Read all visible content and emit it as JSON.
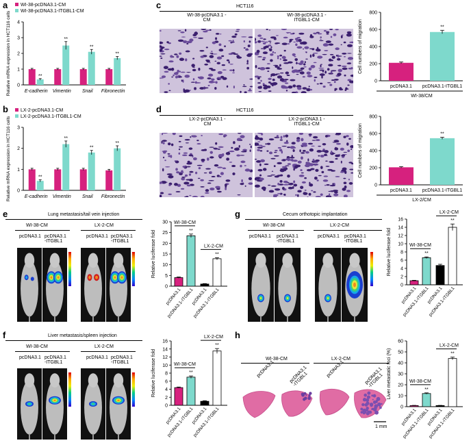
{
  "colors": {
    "magenta": "#d6217e",
    "teal": "#7ed9cc",
    "white": "#ffffff",
    "black": "#000000"
  },
  "panel_a": {
    "label": "a",
    "legend": [
      "WI-38-pcDNA3.1-CM",
      "WI-38-pcDNA3.1-ITGBL1-CM"
    ],
    "ylabel": "Relative mRNA expression in HCT116 cells",
    "yticks": [
      "0",
      "1",
      "2",
      "3",
      "4"
    ],
    "sig": "**"
  },
  "panel_b": {
    "label": "b",
    "legend": [
      "LX-2-pcDNA3.1-CM",
      "LX-2-pcDNA3.1-ITGBL1-CM"
    ],
    "ylabel": "Relative mRNA expression in HCT116 cells",
    "yticks": [
      "0",
      "1",
      "2",
      "3"
    ],
    "sig": "**"
  },
  "panel_c": {
    "label": "c",
    "cell_line": "HCT116",
    "img_left": "WI-38-pcDNA3.1 -CM",
    "img_right": "WI-38-pcDNA3.1 -ITGBL1-CM",
    "ylabel": "Cell numbers of migration",
    "yticks": [
      "0",
      "200",
      "400",
      "600",
      "800"
    ],
    "group": "WI-38/CM",
    "sig": "**"
  },
  "panel_d": {
    "label": "d",
    "cell_line": "HCT116",
    "img_left": "LX-2-pcDNA3.1 -CM",
    "img_right": "LX-2-pcDNA3.1 -ITGBL1-CM",
    "ylabel": "Cell numbers of migration",
    "yticks": [
      "0",
      "200",
      "400",
      "600",
      "800"
    ],
    "group": "LX-2/CM",
    "sig": "**"
  },
  "panel_e": {
    "label": "e",
    "title": "Lung metastasis/tail vein injection",
    "group1": "WI-38-CM",
    "group2": "LX-2-CM",
    "c1": "pcDNA3.1",
    "c2": "pcDNA3.1 -ITGBL1",
    "ylabel": "Relative luciferase fold",
    "yticks": [
      "0",
      "5",
      "10",
      "15",
      "20",
      "25",
      "30"
    ],
    "sig": "**"
  },
  "panel_f": {
    "label": "f",
    "title": "Liver metastasis/spleen injection",
    "group1": "WI-38-CM",
    "group2": "LX-2-CM",
    "c1": "pcDNA3.1",
    "c2": "pcDNA3.1 -ITGBL1",
    "ylabel": "Relative luciferase fold",
    "yticks": [
      "0",
      "2",
      "4",
      "6",
      "8",
      "10",
      "12",
      "14",
      "16"
    ],
    "sig": "**"
  },
  "panel_g": {
    "label": "g",
    "title": "Cecum orthotopic implantation",
    "group1": "WI-38-CM",
    "group2": "LX-2-CM",
    "c1": "pcDNA3.1",
    "c2": "pcDNA3.1 -ITGBL1",
    "ylabel": "Relative luciferase fold",
    "yticks": [
      "0",
      "2",
      "4",
      "6",
      "8",
      "10",
      "12",
      "14",
      "16"
    ],
    "sig": "**"
  },
  "panel_h": {
    "label": "h",
    "group1": "WI-38-CM",
    "group2": "LX-2-CM",
    "img_labels": [
      "pcDNA3.1",
      "pcDNA3.1 -ITGBL1",
      "pcDNA3.1",
      "pcDNA3.1 -ITGBL1"
    ],
    "scale": "1 mm",
    "ylabel": "Liver metastatic foci (%)",
    "yticks": [
      "0",
      "10",
      "20",
      "30",
      "40",
      "50",
      "60"
    ],
    "sig": "**"
  },
  "chart_data": [
    {
      "id": "a",
      "type": "bar",
      "categories": [
        "E-cadherin",
        "Vimentin",
        "Snail",
        "Fibronectin"
      ],
      "series": [
        {
          "name": "WI-38-pcDNA3.1-CM",
          "values": [
            1.0,
            1.0,
            1.0,
            1.0
          ]
        },
        {
          "name": "WI-38-pcDNA3.1-ITGBL1-CM",
          "values": [
            0.35,
            2.5,
            2.1,
            1.7
          ]
        }
      ],
      "errors": [
        [
          0.05,
          0.05,
          0.05,
          0.05
        ],
        [
          0.05,
          0.25,
          0.15,
          0.1
        ]
      ],
      "ylim": [
        0,
        4
      ],
      "ylabel": "Relative mRNA expression in HCT116 cells"
    },
    {
      "id": "b",
      "type": "bar",
      "categories": [
        "E-cadherin",
        "Vimentin",
        "Snail",
        "Fibronectin"
      ],
      "series": [
        {
          "name": "LX-2-pcDNA3.1-CM",
          "values": [
            1.0,
            1.0,
            1.0,
            0.95
          ]
        },
        {
          "name": "LX-2-pcDNA3.1-ITGBL1-CM",
          "values": [
            0.45,
            2.2,
            1.8,
            2.0
          ]
        }
      ],
      "errors": [
        [
          0.05,
          0.05,
          0.05,
          0.05
        ],
        [
          0.05,
          0.15,
          0.1,
          0.12
        ]
      ],
      "ylim": [
        0,
        3
      ],
      "ylabel": "Relative mRNA expression in HCT116 cells"
    },
    {
      "id": "c",
      "type": "bar",
      "categories": [
        "pcDNA3.1",
        "pcDNA3.1-ITGBL1"
      ],
      "values": [
        210,
        570
      ],
      "errors": [
        10,
        20
      ],
      "ylim": [
        0,
        800
      ],
      "ylabel": "Cell numbers of migration",
      "xlabel": "WI-38/CM"
    },
    {
      "id": "d",
      "type": "bar",
      "categories": [
        "pcDNA3.1",
        "pcDNA3.1-ITGBL1"
      ],
      "values": [
        205,
        545
      ],
      "errors": [
        8,
        12
      ],
      "ylim": [
        0,
        800
      ],
      "ylabel": "Cell numbers of migration",
      "xlabel": "LX-2/CM"
    },
    {
      "id": "e",
      "type": "bar",
      "categories": [
        "pcDNA3.1",
        "pcDNA3.1-ITGBL1",
        "pcDNA3.1",
        "pcDNA3.1-ITGBL1"
      ],
      "values": [
        4,
        23.5,
        1,
        12.8
      ],
      "errors": [
        0.3,
        0.8,
        0.2,
        0.5
      ],
      "ylim": [
        0,
        30
      ],
      "ylabel": "Relative luciferase fold",
      "groups": [
        "WI-38-CM",
        "LX-2-CM"
      ]
    },
    {
      "id": "f",
      "type": "bar",
      "categories": [
        "pcDNA3.1",
        "pcDNA3.1-ITGBL1",
        "pcDNA3.1",
        "pcDNA3.1-ITGBL1"
      ],
      "values": [
        4.4,
        7,
        1,
        13.5
      ],
      "errors": [
        0.15,
        0.3,
        0.15,
        0.6
      ],
      "ylim": [
        0,
        16
      ],
      "ylabel": "Relative luciferase fold",
      "groups": [
        "WI-38-CM",
        "LX-2-CM"
      ]
    },
    {
      "id": "g",
      "type": "bar",
      "categories": [
        "pcDNA3.1",
        "pcDNA3.1-ITGBL1",
        "pcDNA3.1",
        "pcDNA3.1-ITGBL1"
      ],
      "values": [
        1,
        6.6,
        4.7,
        14
      ],
      "errors": [
        0.1,
        0.2,
        0.3,
        0.8
      ],
      "ylim": [
        0,
        16
      ],
      "ylabel": "Relative luciferase fold",
      "groups": [
        "WI-38-CM",
        "LX-2-CM"
      ]
    },
    {
      "id": "h",
      "type": "bar",
      "categories": [
        "pcDNA3.1",
        "pcDNA3.1-ITGBL1",
        "pcDNA3.1",
        "pcDNA3.1-ITGBL1"
      ],
      "values": [
        1,
        12,
        1,
        44
      ],
      "errors": [
        0.2,
        0.6,
        0.2,
        1.2
      ],
      "ylim": [
        0,
        60
      ],
      "ylabel": "Liver metastatic foci (%)",
      "groups": [
        "WI-38-CM",
        "LX-2-CM"
      ]
    }
  ]
}
